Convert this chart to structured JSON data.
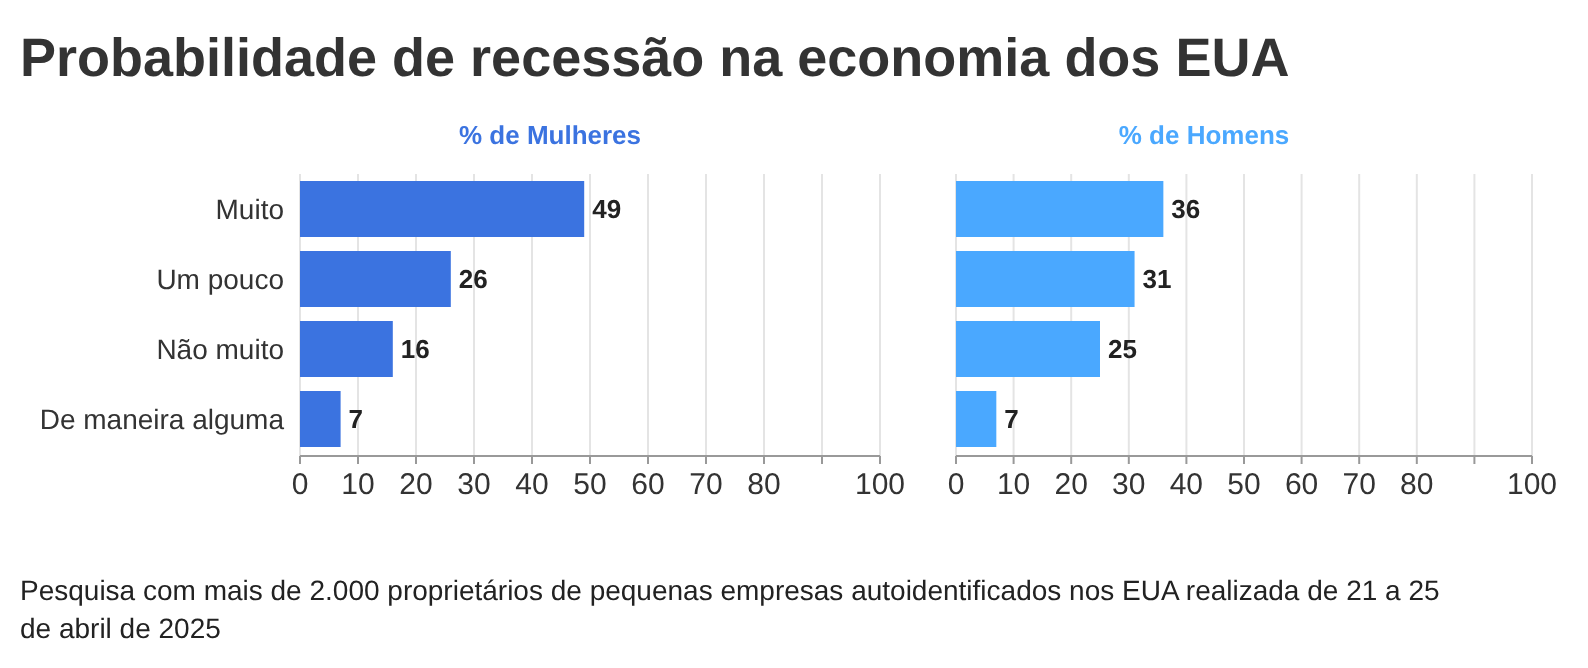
{
  "chart_data": [
    {
      "type": "bar",
      "orientation": "horizontal",
      "title": "Probabilidade de recessão na economia dos EUA",
      "categories": [
        "Muito",
        "Um pouco",
        "Não muito",
        "De maneira alguma"
      ],
      "series": [
        {
          "name": "% de Mulheres",
          "color": "#3b73e0",
          "values": [
            49,
            26,
            16,
            7
          ]
        }
      ],
      "xlim": [
        0,
        100
      ],
      "xticks": [
        0,
        10,
        20,
        30,
        40,
        50,
        60,
        70,
        80,
        {
          "value": 90,
          "label": null
        },
        100
      ],
      "grid": "x",
      "data_labels": true,
      "annotations": [
        "Pesquisa com mais de 2.000 proprietários de pequenas empresas autoidentificados nos EUA realizada de 21 a 25 de abril de 2025"
      ]
    },
    {
      "type": "bar",
      "orientation": "horizontal",
      "categories": [
        null,
        null,
        null,
        null
      ],
      "series": [
        {
          "name": "% de Homens",
          "color": "#4aa8ff",
          "values": [
            36,
            31,
            25,
            7
          ]
        }
      ],
      "xlim": [
        0,
        100
      ],
      "xticks": [
        0,
        10,
        20,
        30,
        40,
        50,
        60,
        70,
        80,
        {
          "value": 90,
          "label": null
        },
        100
      ],
      "grid": "x",
      "data_labels": true,
      "tick_labels": "x"
    }
  ]
}
